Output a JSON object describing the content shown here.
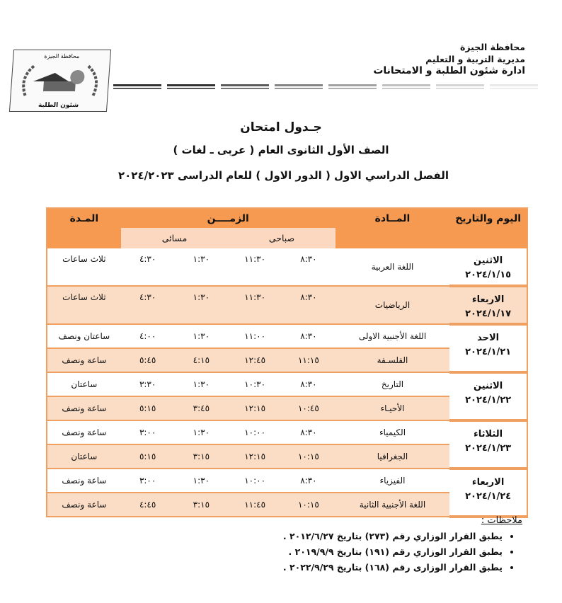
{
  "header": {
    "line1": "محافظة الجيزة",
    "line2": "مديرية التربية و التعليم",
    "line3": "ادارة شئون الطلبة و الامتحانات"
  },
  "logo": {
    "top_text": "محافظة الجيزة",
    "bottom_text": "شئون الطلبة"
  },
  "titles": {
    "t1": "جـدول امتحان",
    "t2": "الصف الأول الثانوى العام ( عربى ـ لغات )",
    "t3": "الفصل الدراسي الاول ( الدور الاول ) للعام الدراسى ٢٠٢٤/٢٠٢٣"
  },
  "table": {
    "headers": {
      "day": "اليوم والتاريخ",
      "subject": "المــادة",
      "time": "الزمــــن",
      "duration": "المـدة",
      "morning": "صباحى",
      "evening": "مسائى"
    },
    "colors": {
      "header": "#f69a52",
      "subheader": "#fbd8bf",
      "alt_row": "#fbdcc4",
      "border": "#f0a060"
    },
    "days": [
      {
        "day": "الاثنين",
        "date": "٢٠٢٤/١/١٥",
        "exams": [
          {
            "subject": "اللغة العربية",
            "t1": "٨:٣٠",
            "t2": "١١:٣٠",
            "t3": "١:٣٠",
            "t4": "٤:٣٠",
            "duration": "ثلاث ساعات"
          }
        ]
      },
      {
        "day": "الاربعاء",
        "date": "٢٠٢٤/١/١٧",
        "exams": [
          {
            "subject": "الرياضيات",
            "t1": "٨:٣٠",
            "t2": "١١:٣٠",
            "t3": "١:٣٠",
            "t4": "٤:٣٠",
            "duration": "ثلاث ساعات"
          }
        ]
      },
      {
        "day": "الاحد",
        "date": "٢٠٢٤/١/٢١",
        "exams": [
          {
            "subject": "اللغة الأجنبية الاولى",
            "t1": "٨:٣٠",
            "t2": "١١:٠٠",
            "t3": "١:٣٠",
            "t4": "٤:٠٠",
            "duration": "ساعتان ونصف"
          },
          {
            "subject": "الفلسـفة",
            "t1": "١١:١٥",
            "t2": "١٢:٤٥",
            "t3": "٤:١٥",
            "t4": "٥:٤٥",
            "duration": "ساعة ونصف"
          }
        ]
      },
      {
        "day": "الاثنين",
        "date": "٢٠٢٤/١/٢٢",
        "exams": [
          {
            "subject": "التاريخ",
            "t1": "٨:٣٠",
            "t2": "١٠:٣٠",
            "t3": "١:٣٠",
            "t4": "٣:٣٠",
            "duration": "ساعتان"
          },
          {
            "subject": "الأحيـاء",
            "t1": "١٠:٤٥",
            "t2": "١٢:١٥",
            "t3": "٣:٤٥",
            "t4": "٥:١٥",
            "duration": "ساعة ونصف"
          }
        ]
      },
      {
        "day": "الثلاثاء",
        "date": "٢٠٢٤/١/٢٣",
        "exams": [
          {
            "subject": "الكيمياء",
            "t1": "٨:٣٠",
            "t2": "١٠:٠٠",
            "t3": "١:٣٠",
            "t4": "٣:٠٠",
            "duration": "ساعة ونصف"
          },
          {
            "subject": "الجغرافيا",
            "t1": "١٠:١٥",
            "t2": "١٢:١٥",
            "t3": "٣:١٥",
            "t4": "٥:١٥",
            "duration": "ساعتان"
          }
        ]
      },
      {
        "day": "الاربعاء",
        "date": "٢٠٢٤/١/٢٤",
        "exams": [
          {
            "subject": "الفيزياء",
            "t1": "٨:٣٠",
            "t2": "١٠:٠٠",
            "t3": "١:٣٠",
            "t4": "٣:٠٠",
            "duration": "ساعة ونصف"
          },
          {
            "subject": "اللغة الأجنبية الثانية",
            "t1": "١٠:١٥",
            "t2": "١١:٤٥",
            "t3": "٣:١٥",
            "t4": "٤:٤٥",
            "duration": "ساعة ونصف"
          }
        ]
      }
    ]
  },
  "notes": {
    "title": "ملاحظات :",
    "items": [
      "يطبق القرار الوزاري رقم (٢٧٣) بتاريخ ٢٠١٢/٦/٢٧ .",
      "يطبق القرار الوزاري رقم (١٩١) بتاريخ ٢٠١٩/٩/٩ .",
      "يطبق القرار الوزارى رقم (١٦٨) بتاريخ ٢٠٢٢/٩/٢٩ ."
    ]
  }
}
